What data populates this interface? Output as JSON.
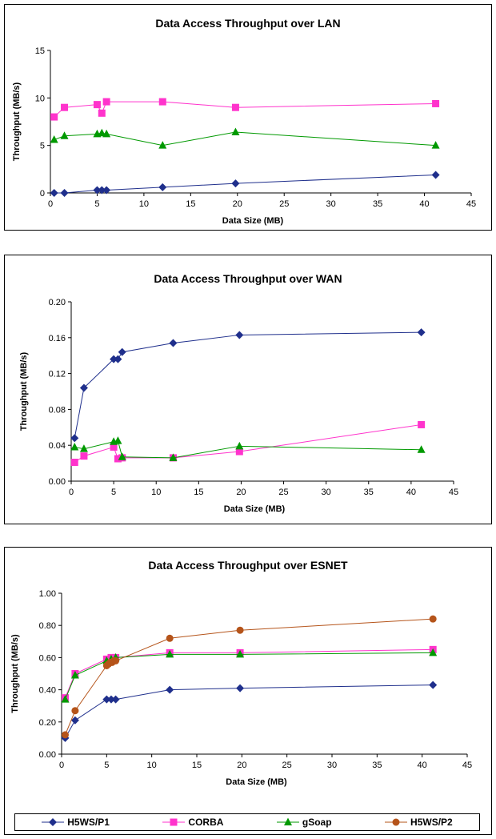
{
  "chart_data": [
    {
      "type": "line",
      "title": "Data Access Throughput over LAN",
      "xlabel": "Data Size (MB)",
      "ylabel": "Throughput (MB/s)",
      "xlim": [
        0,
        45
      ],
      "ylim": [
        0,
        15
      ],
      "xticks": [
        0,
        5,
        10,
        15,
        20,
        25,
        30,
        35,
        40,
        45
      ],
      "yticks": [
        0,
        5,
        10,
        15
      ],
      "ytick_labels": [
        "0",
        "5",
        "10",
        "15"
      ],
      "series": [
        {
          "name": "H5WS/P1",
          "color": "#1f2f8c",
          "marker": "diamond",
          "x": [
            0.4,
            1.5,
            5.0,
            5.5,
            6.0,
            12.0,
            19.8,
            41.2
          ],
          "y": [
            0.0,
            0.0,
            0.3,
            0.3,
            0.3,
            0.6,
            1.0,
            1.9
          ]
        },
        {
          "name": "CORBA",
          "color": "#ff33cc",
          "marker": "square",
          "x": [
            0.4,
            1.5,
            5.0,
            5.5,
            6.0,
            12.0,
            19.8,
            41.2
          ],
          "y": [
            8.0,
            9.0,
            9.3,
            8.4,
            9.6,
            9.6,
            9.0,
            9.4
          ]
        },
        {
          "name": "gSoap",
          "color": "#009900",
          "marker": "triangle",
          "x": [
            0.4,
            1.5,
            5.0,
            5.5,
            6.0,
            12.0,
            19.8,
            41.2
          ],
          "y": [
            5.6,
            6.0,
            6.2,
            6.3,
            6.2,
            5.0,
            6.4,
            5.0
          ]
        }
      ]
    },
    {
      "type": "line",
      "title": "Data Access Throughput over WAN",
      "xlabel": "Data Size (MB)",
      "ylabel": "Throughput (MB/s)",
      "xlim": [
        0,
        45
      ],
      "ylim": [
        0,
        0.2
      ],
      "xticks": [
        0,
        5,
        10,
        15,
        20,
        25,
        30,
        35,
        40,
        45
      ],
      "yticks": [
        0,
        0.04,
        0.08,
        0.12,
        0.16,
        0.2
      ],
      "ytick_labels": [
        "0.00",
        "0.04",
        "0.08",
        "0.12",
        "0.16",
        "0.20"
      ],
      "series": [
        {
          "name": "H5WS/P1",
          "color": "#1f2f8c",
          "marker": "diamond",
          "x": [
            0.4,
            1.5,
            5.0,
            5.5,
            6.0,
            12.0,
            19.8,
            41.2
          ],
          "y": [
            0.048,
            0.104,
            0.136,
            0.136,
            0.144,
            0.154,
            0.163,
            0.166
          ]
        },
        {
          "name": "CORBA",
          "color": "#ff33cc",
          "marker": "square",
          "x": [
            0.4,
            1.5,
            5.0,
            5.5,
            6.0,
            12.0,
            19.8,
            41.2
          ],
          "y": [
            0.021,
            0.028,
            0.038,
            0.025,
            0.026,
            0.026,
            0.033,
            0.063
          ]
        },
        {
          "name": "gSoap",
          "color": "#009900",
          "marker": "triangle",
          "x": [
            0.4,
            1.5,
            5.0,
            5.5,
            6.0,
            12.0,
            19.8,
            41.2
          ],
          "y": [
            0.038,
            0.036,
            0.044,
            0.045,
            0.027,
            0.026,
            0.039,
            0.035
          ]
        }
      ]
    },
    {
      "type": "line",
      "title": "Data Access Throughput over ESNET",
      "xlabel": "Data Size (MB)",
      "ylabel": "Throughput (MB/s)",
      "xlim": [
        0,
        45
      ],
      "ylim": [
        0,
        1.0
      ],
      "xticks": [
        0,
        5,
        10,
        15,
        20,
        25,
        30,
        35,
        40,
        45
      ],
      "yticks": [
        0,
        0.2,
        0.4,
        0.6,
        0.8,
        1.0
      ],
      "ytick_labels": [
        "0.00",
        "0.20",
        "0.40",
        "0.60",
        "0.80",
        "1.00"
      ],
      "legend": "bottom",
      "series": [
        {
          "name": "H5WS/P1",
          "color": "#1f2f8c",
          "marker": "diamond",
          "x": [
            0.4,
            1.5,
            5.0,
            5.5,
            6.0,
            12.0,
            19.8,
            41.2
          ],
          "y": [
            0.1,
            0.21,
            0.34,
            0.34,
            0.34,
            0.4,
            0.41,
            0.43
          ]
        },
        {
          "name": "CORBA",
          "color": "#ff33cc",
          "marker": "square",
          "x": [
            0.4,
            1.5,
            5.0,
            5.5,
            6.0,
            12.0,
            19.8,
            41.2
          ],
          "y": [
            0.35,
            0.5,
            0.59,
            0.6,
            0.6,
            0.63,
            0.63,
            0.65
          ]
        },
        {
          "name": "gSoap",
          "color": "#009900",
          "marker": "triangle",
          "x": [
            0.4,
            1.5,
            5.0,
            5.5,
            6.0,
            12.0,
            19.8,
            41.2
          ],
          "y": [
            0.34,
            0.49,
            0.58,
            0.59,
            0.6,
            0.62,
            0.62,
            0.63
          ]
        },
        {
          "name": "H5WS/P2",
          "color": "#b5541a",
          "marker": "circle",
          "x": [
            0.4,
            1.5,
            5.0,
            5.2,
            5.4,
            5.6,
            5.8,
            6.0,
            12.0,
            19.8,
            41.2
          ],
          "y": [
            0.12,
            0.27,
            0.55,
            0.56,
            0.57,
            0.57,
            0.58,
            0.58,
            0.72,
            0.77,
            0.84
          ]
        }
      ]
    }
  ]
}
